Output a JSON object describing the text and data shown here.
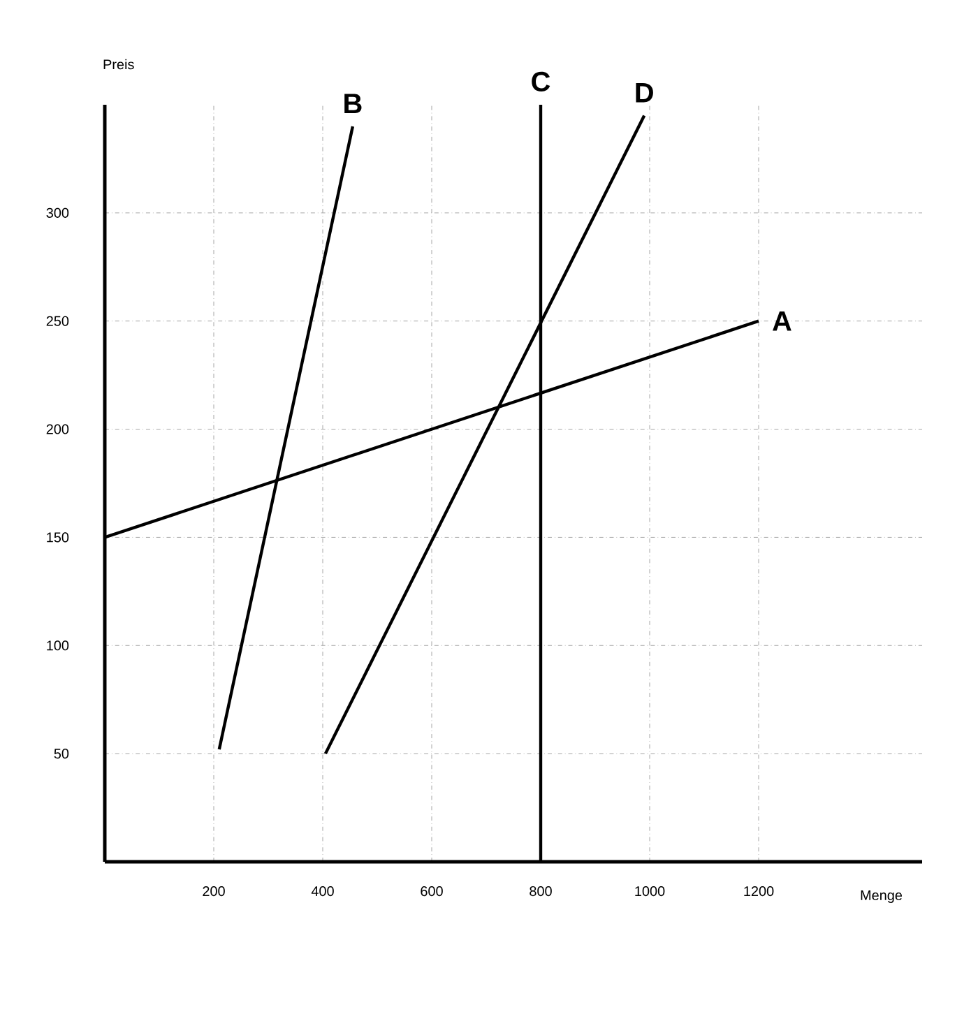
{
  "chart_data": {
    "type": "line",
    "xlabel": "Menge",
    "ylabel": "Preis",
    "xlim": [
      0,
      1500
    ],
    "ylim": [
      0,
      350
    ],
    "xticks": [
      200,
      400,
      600,
      800,
      1000,
      1200
    ],
    "yticks": [
      50,
      100,
      150,
      200,
      250,
      300
    ],
    "grid": true,
    "marker": "none",
    "line_style": "solid",
    "series": [
      {
        "name": "A",
        "color": "#000000",
        "x": [
          0,
          1200
        ],
        "values": [
          150,
          250
        ]
      },
      {
        "name": "B",
        "color": "#000000",
        "x": [
          210,
          455
        ],
        "values": [
          52,
          340
        ]
      },
      {
        "name": "C",
        "color": "#000000",
        "x": [
          800,
          800
        ],
        "values": [
          0,
          350
        ]
      },
      {
        "name": "D",
        "color": "#000000",
        "x": [
          405,
          990
        ],
        "values": [
          50,
          345
        ]
      }
    ]
  }
}
